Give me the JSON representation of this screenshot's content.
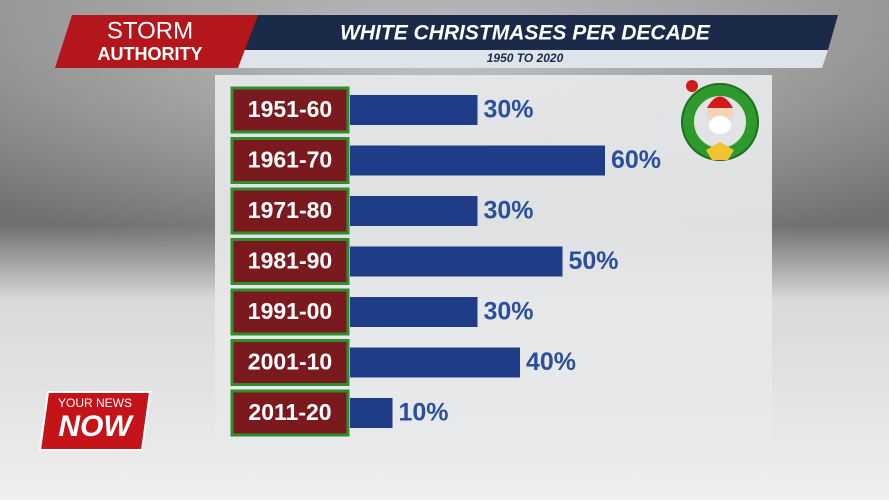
{
  "branding": {
    "show_top": "STORM",
    "show_bottom": "AUTHORITY",
    "logo_top": "YOUR NEWS",
    "logo_bottom": "NOW"
  },
  "chart_data": {
    "type": "bar",
    "orientation": "horizontal",
    "title": "WHITE CHRISTMASES PER DECADE",
    "subtitle": "1950 TO 2020",
    "categories": [
      "1951-60",
      "1961-70",
      "1971-80",
      "1981-90",
      "1991-00",
      "2001-10",
      "2011-20"
    ],
    "values": [
      30,
      60,
      30,
      50,
      30,
      40,
      10
    ],
    "value_labels": [
      "30%",
      "60%",
      "30%",
      "50%",
      "30%",
      "40%",
      "10%"
    ],
    "color": "#1f3c88"
  }
}
